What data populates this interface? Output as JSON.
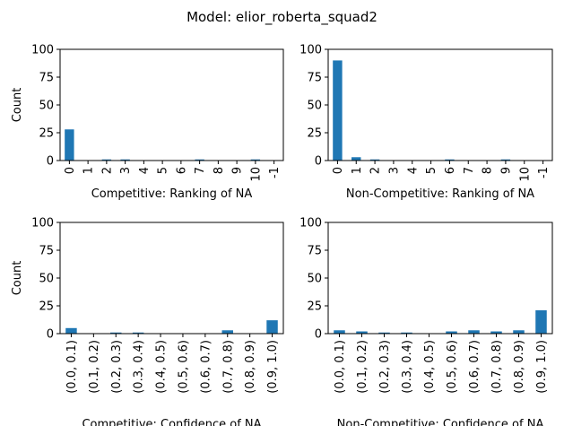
{
  "figure_title": "Model: elior_roberta_squad2",
  "colors": {
    "bar": "#1f77b4",
    "axis": "#000000",
    "background": "#ffffff"
  },
  "chart_data": [
    {
      "type": "bar",
      "xlabel": "Competitive: Ranking of NA",
      "ylabel": "Count",
      "ylim": [
        0,
        100
      ],
      "yticks": [
        0,
        25,
        50,
        75,
        100
      ],
      "grid": false,
      "categories": [
        "0",
        "1",
        "2",
        "3",
        "4",
        "5",
        "6",
        "7",
        "8",
        "9",
        "10",
        "-1"
      ],
      "values": [
        28,
        0,
        1,
        1,
        0,
        0,
        0,
        1,
        0,
        0,
        1,
        0
      ]
    },
    {
      "type": "bar",
      "xlabel": "Non-Competitive: Ranking of NA",
      "ylabel": "",
      "ylim": [
        0,
        100
      ],
      "yticks": [
        0,
        25,
        50,
        75,
        100
      ],
      "grid": false,
      "categories": [
        "0",
        "1",
        "2",
        "3",
        "4",
        "5",
        "6",
        "7",
        "8",
        "9",
        "10",
        "-1"
      ],
      "values": [
        90,
        3,
        1,
        0,
        0,
        0,
        1,
        0,
        0,
        1,
        0,
        0
      ]
    },
    {
      "type": "bar",
      "xlabel": "Competitive: Confidence of NA",
      "ylabel": "Count",
      "ylim": [
        0,
        100
      ],
      "yticks": [
        0,
        25,
        50,
        75,
        100
      ],
      "grid": false,
      "categories": [
        "(0.0, 0.1)",
        "(0.1, 0.2)",
        "(0.2, 0.3)",
        "(0.3, 0.4)",
        "(0.4, 0.5)",
        "(0.5, 0.6)",
        "(0.6, 0.7)",
        "(0.7, 0.8)",
        "(0.8, 0.9)",
        "(0.9, 1.0)"
      ],
      "values": [
        5,
        0,
        1,
        1,
        0,
        0,
        0,
        3,
        0,
        12
      ]
    },
    {
      "type": "bar",
      "xlabel": "Non-Competitive: Confidence of NA",
      "ylabel": "",
      "ylim": [
        0,
        100
      ],
      "yticks": [
        0,
        25,
        50,
        75,
        100
      ],
      "grid": false,
      "categories": [
        "(0.0, 0.1)",
        "(0.1, 0.2)",
        "(0.2, 0.3)",
        "(0.3, 0.4)",
        "(0.4, 0.5)",
        "(0.5, 0.6)",
        "(0.6, 0.7)",
        "(0.7, 0.8)",
        "(0.8, 0.9)",
        "(0.9, 1.0)"
      ],
      "values": [
        3,
        2,
        1,
        1,
        0,
        2,
        3,
        2,
        3,
        21
      ]
    }
  ]
}
